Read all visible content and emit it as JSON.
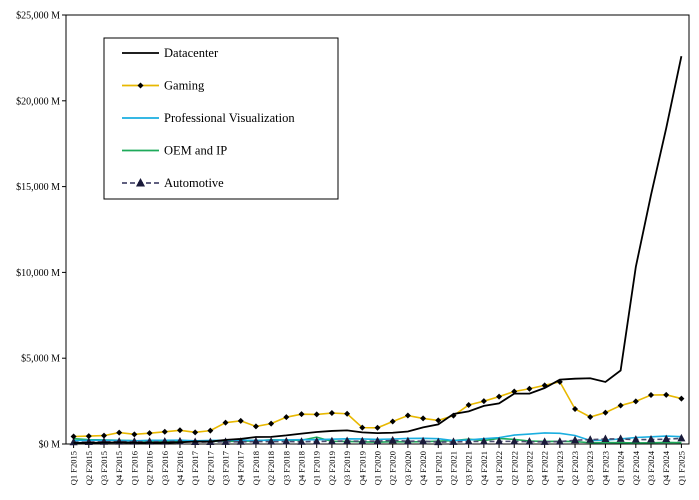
{
  "chart_data": {
    "type": "line",
    "title": "",
    "xlabel": "",
    "ylabel": "",
    "ylim": [
      0,
      25000
    ],
    "yticks": [
      {
        "value": 0,
        "label": "$0 M"
      },
      {
        "value": 5000,
        "label": "$5,000 M"
      },
      {
        "value": 10000,
        "label": "$10,000 M"
      },
      {
        "value": 15000,
        "label": "$15,000 M"
      },
      {
        "value": 20000,
        "label": "$20,000 M"
      },
      {
        "value": 25000,
        "label": "$25,000 M"
      }
    ],
    "grid": false,
    "legend_position": "top-left",
    "categories": [
      "Q1 F2015",
      "Q2 F2015",
      "Q3 F2015",
      "Q4 F2015",
      "Q1 F2016",
      "Q2 F2016",
      "Q3 F2016",
      "Q4 F2016",
      "Q1 F2017",
      "Q2 F2017",
      "Q3 F2017",
      "Q4 F2017",
      "Q1 F2018",
      "Q2 F2018",
      "Q3 F2018",
      "Q4 F2018",
      "Q1 F2019",
      "Q2 F2019",
      "Q3 F2019",
      "Q4 F2019",
      "Q1 F2020",
      "Q2 F2020",
      "Q3 F2020",
      "Q4 F2020",
      "Q1 F2021",
      "Q2 F2021",
      "Q3 F2021",
      "Q4 F2021",
      "Q1 F2022",
      "Q2 F2022",
      "Q3 F2022",
      "Q4 F2022",
      "Q1 F2023",
      "Q2 F2023",
      "Q3 F2023",
      "Q4 F2023",
      "Q1 F2024",
      "Q2 F2024",
      "Q3 F2024",
      "Q4 F2024",
      "Q1 F2025"
    ],
    "series": [
      {
        "name": "Datacenter",
        "color": "#000000",
        "marker": "none",
        "dashed": false,
        "values": [
          57,
          72,
          80,
          97,
          77,
          71,
          76,
          98,
          144,
          143,
          240,
          296,
          409,
          416,
          501,
          606,
          701,
          760,
          792,
          679,
          634,
          655,
          726,
          968,
          1141,
          1752,
          1900,
          2223,
          2366,
          2936,
          2936,
          3263,
          3750,
          3806,
          3833,
          3616,
          4284,
          10323,
          14514,
          18404,
          22600
        ]
      },
      {
        "name": "Gaming",
        "color": "#e8b800",
        "marker": "diamond",
        "dashed": false,
        "values": [
          437,
          460,
          489,
          666,
          563,
          631,
          711,
          799,
          679,
          780,
          1244,
          1348,
          1027,
          1186,
          1564,
          1739,
          1723,
          1805,
          1764,
          954,
          945,
          1313,
          1659,
          1491,
          1376,
          1654,
          2271,
          2495,
          2760,
          3060,
          3221,
          3420,
          3620,
          2042,
          1574,
          1831,
          2240,
          2486,
          2856,
          2865,
          2647
        ]
      },
      {
        "name": "Professional Visualization",
        "color": "#1aaee0",
        "marker": "none",
        "dashed": false,
        "values": [
          196,
          220,
          218,
          211,
          189,
          212,
          218,
          220,
          189,
          207,
          219,
          225,
          205,
          225,
          239,
          254,
          251,
          281,
          305,
          293,
          266,
          291,
          324,
          331,
          307,
          203,
          236,
          307,
          372,
          519,
          577,
          643,
          622,
          496,
          200,
          226,
          295,
          379,
          416,
          463,
          427
        ]
      },
      {
        "name": "OEM and IP",
        "color": "#1eaa5a",
        "marker": "none",
        "dashed": false,
        "values": [
          312,
          252,
          238,
          214,
          197,
          158,
          150,
          150,
          151,
          153,
          154,
          158,
          189,
          246,
          228,
          216,
          400,
          153,
          151,
          130,
          104,
          134,
          127,
          136,
          166,
          199,
          280,
          202,
          327,
          266,
          174,
          152,
          158,
          140,
          73,
          84,
          77,
          66,
          73,
          90,
          78
        ]
      },
      {
        "name": "Automotive",
        "color": "#4b4b6e",
        "marker": "triangle",
        "dashed": true,
        "values": [
          103,
          116,
          128,
          140,
          138,
          135,
          140,
          151,
          113,
          119,
          127,
          128,
          144,
          142,
          144,
          132,
          145,
          161,
          172,
          163,
          166,
          209,
          162,
          163,
          111,
          125,
          145,
          145,
          154,
          152,
          135,
          125,
          138,
          220,
          251,
          294,
          296,
          253,
          261,
          281,
          329
        ]
      }
    ]
  }
}
